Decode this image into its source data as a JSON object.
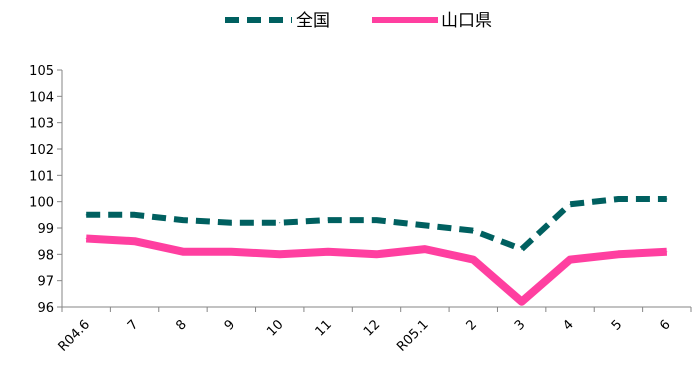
{
  "chart_data": {
    "type": "line",
    "categories": [
      "R04.6",
      "7",
      "8",
      "9",
      "10",
      "11",
      "12",
      "R05.1",
      "2",
      "3",
      "4",
      "5",
      "6"
    ],
    "ylim": [
      96,
      105
    ],
    "yticks": [
      "96",
      "97",
      "98",
      "99",
      "100",
      "101",
      "102",
      "103",
      "104",
      "105"
    ],
    "grid": false,
    "legend_position": "top-center",
    "series": [
      {
        "name": "全国",
        "color": "#006060",
        "style": "dashed",
        "values": [
          99.5,
          99.5,
          99.3,
          99.2,
          99.2,
          99.3,
          99.3,
          99.1,
          98.9,
          98.2,
          99.9,
          100.1,
          100.1
        ]
      },
      {
        "name": "山口県",
        "color": "#FF3FA0",
        "style": "solid",
        "values": [
          98.6,
          98.5,
          98.1,
          98.1,
          98.0,
          98.1,
          98.0,
          98.2,
          97.8,
          96.2,
          97.8,
          98.0,
          98.1
        ]
      }
    ]
  }
}
